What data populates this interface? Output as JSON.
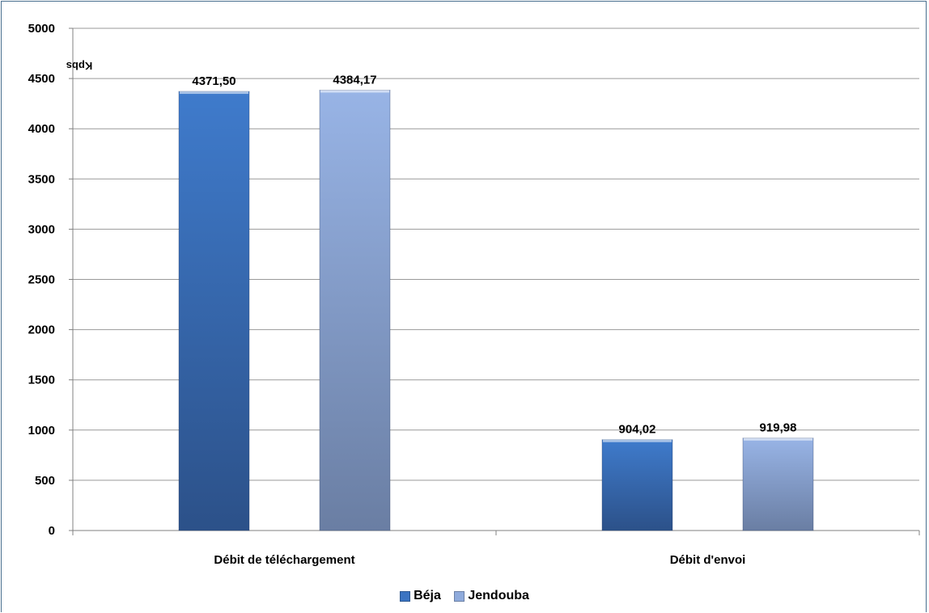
{
  "chart_data": {
    "type": "bar",
    "categories": [
      "Débit de téléchargement",
      "Débit d'envoi"
    ],
    "series": [
      {
        "name": "Béja",
        "values": [
          4371.5,
          904.02
        ],
        "labels": [
          "4371,50",
          "904,02"
        ],
        "color": "#3b74c2"
      },
      {
        "name": "Jendouba",
        "values": [
          4384.17,
          919.98
        ],
        "labels": [
          "4384,17",
          "919,98"
        ],
        "color": "#8fabdc"
      }
    ],
    "ylabel": "Kpbs",
    "ylim": [
      0,
      5000
    ],
    "yticks": [
      "0",
      "500",
      "1000",
      "1500",
      "2000",
      "2500",
      "3000",
      "3500",
      "4000",
      "4500",
      "5000"
    ],
    "grid": true,
    "legend_position": "bottom"
  }
}
